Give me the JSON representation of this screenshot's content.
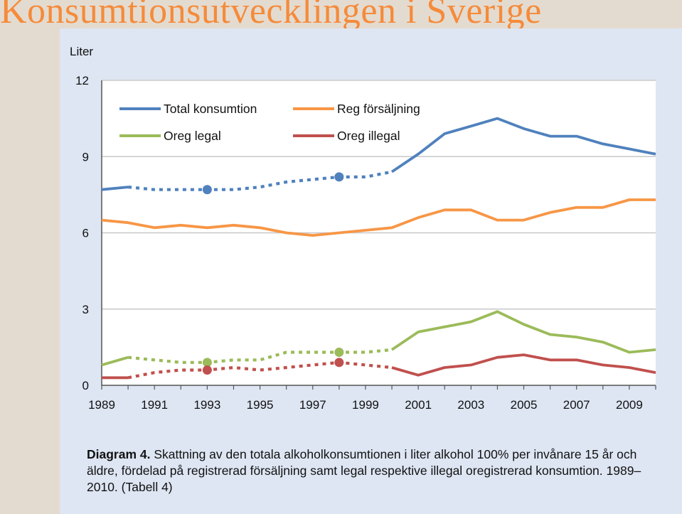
{
  "slide": {
    "title": "Konsumtionsutvecklingen i Sverige"
  },
  "caption": {
    "lead": "Diagram 4.",
    "text": " Skattning av den totala alkoholkonsumtionen i liter alkohol 100% per invånare 15 år och äldre, fördelad på registrerad försäljning samt legal respektive illegal oregistrerad konsumtion. 1989–2010. (Tabell 4)"
  },
  "chart_data": {
    "type": "line",
    "title": "",
    "ylabel": "Liter",
    "xlabel": "",
    "ylim": [
      0,
      12
    ],
    "yticks": [
      0,
      3,
      6,
      9,
      12
    ],
    "xlim": [
      1989,
      2010
    ],
    "xticks": [
      1989,
      1991,
      1993,
      1995,
      1997,
      1999,
      2001,
      2003,
      2005,
      2007,
      2009
    ],
    "grid": "horizontal",
    "legend_position": "top-left, inside plot",
    "x": [
      1989,
      1990,
      1991,
      1992,
      1993,
      1994,
      1995,
      1996,
      1997,
      1998,
      1999,
      2000,
      2001,
      2002,
      2003,
      2004,
      2005,
      2006,
      2007,
      2008,
      2009,
      2010
    ],
    "series": [
      {
        "name": "Total konsumtion",
        "color": "#4f81bd",
        "values": [
          7.7,
          7.8,
          7.7,
          7.7,
          7.7,
          7.7,
          7.8,
          8.0,
          8.1,
          8.2,
          8.2,
          8.4,
          9.1,
          9.9,
          10.2,
          10.5,
          10.1,
          9.8,
          9.8,
          9.5,
          9.3,
          9.1
        ],
        "markers": [
          1993,
          1998
        ]
      },
      {
        "name": "Reg försäljning",
        "color": "#f79646",
        "values": [
          6.5,
          6.4,
          6.2,
          6.3,
          6.2,
          6.3,
          6.2,
          6.0,
          5.9,
          6.0,
          6.1,
          6.2,
          6.6,
          6.9,
          6.9,
          6.5,
          6.5,
          6.8,
          7.0,
          7.0,
          7.3,
          7.3
        ],
        "markers": []
      },
      {
        "name": "Oreg legal",
        "color": "#9bbb59",
        "values": [
          0.8,
          1.1,
          1.0,
          0.9,
          0.9,
          1.0,
          1.0,
          1.3,
          1.3,
          1.3,
          1.3,
          1.4,
          2.1,
          2.3,
          2.5,
          2.9,
          2.4,
          2.0,
          1.9,
          1.7,
          1.3,
          1.4
        ],
        "markers": [
          1993,
          1998
        ]
      },
      {
        "name": "Oreg illegal",
        "color": "#c0504d",
        "values": [
          0.3,
          0.3,
          0.5,
          0.6,
          0.6,
          0.7,
          0.6,
          0.7,
          0.8,
          0.9,
          0.8,
          0.7,
          0.4,
          0.7,
          0.8,
          1.1,
          1.2,
          1.0,
          1.0,
          0.8,
          0.7,
          0.5
        ],
        "markers": [
          1993,
          1998
        ]
      }
    ],
    "dashed_range": {
      "Total konsumtion": [
        1990,
        2000
      ],
      "Reg försäljning": [],
      "Oreg legal": [
        1990,
        2000
      ],
      "Oreg illegal": [
        1990,
        2000
      ]
    }
  }
}
